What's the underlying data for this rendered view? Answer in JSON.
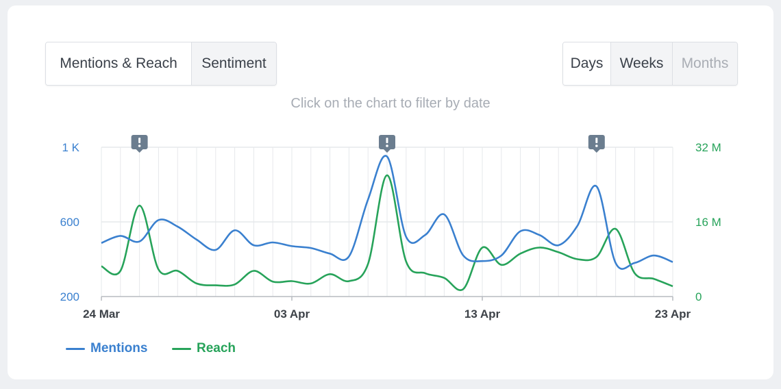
{
  "tabs": {
    "mentions_reach": "Mentions & Reach",
    "sentiment": "Sentiment"
  },
  "period": {
    "days": "Days",
    "weeks": "Weeks",
    "months": "Months"
  },
  "hint": "Click on the chart to filter by date",
  "colors": {
    "mentions": "#3a80cf",
    "reach": "#27a35a",
    "grid": "#e6e8eb",
    "axis": "#b7bbc1",
    "marker": "#6b7d8f"
  },
  "chart_data": {
    "type": "line",
    "title": "",
    "x": [
      "2024-03-24",
      "2024-03-25",
      "2024-03-26",
      "2024-03-27",
      "2024-03-28",
      "2024-03-29",
      "2024-03-30",
      "2024-03-31",
      "2024-04-01",
      "2024-04-02",
      "2024-04-03",
      "2024-04-04",
      "2024-04-05",
      "2024-04-06",
      "2024-04-07",
      "2024-04-08",
      "2024-04-09",
      "2024-04-10",
      "2024-04-11",
      "2024-04-12",
      "2024-04-13",
      "2024-04-14",
      "2024-04-15",
      "2024-04-16",
      "2024-04-17",
      "2024-04-18",
      "2024-04-19",
      "2024-04-20",
      "2024-04-21",
      "2024-04-22",
      "2024-04-23"
    ],
    "x_tick_labels": [
      "24 Mar",
      "03 Apr",
      "13 Apr",
      "23 Apr"
    ],
    "x_tick_dates": [
      "2024-03-24",
      "2024-04-03",
      "2024-04-13",
      "2024-04-23"
    ],
    "event_marker_dates": [
      "2024-03-26",
      "2024-04-08",
      "2024-04-19"
    ],
    "event_marker_icon": "exclamation-icon",
    "series": [
      {
        "name": "Mentions",
        "axis": "left",
        "values": [
          487,
          525,
          495,
          610,
          575,
          505,
          450,
          555,
          475,
          490,
          470,
          460,
          430,
          415,
          720,
          950,
          520,
          530,
          640,
          420,
          390,
          420,
          550,
          530,
          475,
          580,
          790,
          380,
          380,
          420,
          385
        ]
      },
      {
        "name": "Reach",
        "axis": "right",
        "values": [
          6.5,
          5.5,
          19.5,
          5.8,
          5.5,
          2.8,
          2.4,
          2.6,
          5.5,
          3.2,
          3.3,
          2.8,
          4.8,
          3.3,
          7.0,
          26.0,
          7.5,
          5.0,
          4.0,
          1.6,
          10.5,
          6.8,
          9.2,
          10.5,
          9.5,
          8.0,
          8.5,
          14.5,
          5.0,
          3.8,
          2.2
        ]
      }
    ],
    "y_left": {
      "ticks": [
        200,
        600,
        1000
      ],
      "tick_labels": [
        "200",
        "600",
        "1 K"
      ],
      "range": [
        200,
        1000
      ]
    },
    "y_right": {
      "ticks": [
        0,
        16,
        32
      ],
      "tick_labels": [
        "0",
        "16 M",
        "32 M"
      ],
      "range": [
        0,
        32
      ],
      "unit": "M"
    },
    "grid": true,
    "legend_position": "bottom-left"
  }
}
